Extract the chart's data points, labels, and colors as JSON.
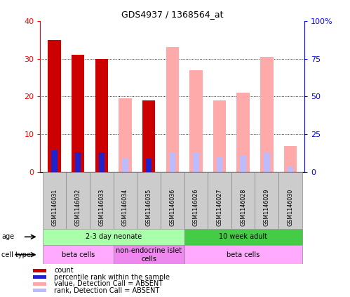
{
  "title": "GDS4937 / 1368564_at",
  "samples": [
    "GSM1146031",
    "GSM1146032",
    "GSM1146033",
    "GSM1146034",
    "GSM1146035",
    "GSM1146036",
    "GSM1146026",
    "GSM1146027",
    "GSM1146028",
    "GSM1146029",
    "GSM1146030"
  ],
  "count_values": [
    35,
    31,
    30,
    null,
    19,
    null,
    null,
    null,
    null,
    null,
    null
  ],
  "rank_values": [
    14.5,
    13,
    13,
    null,
    9,
    null,
    null,
    null,
    null,
    null,
    null
  ],
  "absent_value_values": [
    null,
    null,
    null,
    19.5,
    null,
    33,
    27,
    19,
    21,
    30.5,
    7
  ],
  "absent_rank_values": [
    null,
    null,
    null,
    9,
    null,
    13,
    13,
    10,
    11,
    13,
    4
  ],
  "ylim_left": [
    0,
    40
  ],
  "ylim_right": [
    0,
    100
  ],
  "yticks_left": [
    0,
    10,
    20,
    30,
    40
  ],
  "yticks_right": [
    0,
    25,
    50,
    75,
    100
  ],
  "count_color": "#cc0000",
  "rank_color": "#2222cc",
  "absent_value_color": "#ffaaaa",
  "absent_rank_color": "#bbbbff",
  "bar_width": 0.55,
  "rank_bar_width": 0.25,
  "age_groups": [
    {
      "label": "2-3 day neonate",
      "start": 0,
      "end": 6,
      "color": "#aaffaa"
    },
    {
      "label": "10 week adult",
      "start": 6,
      "end": 11,
      "color": "#44cc44"
    }
  ],
  "cell_type_groups": [
    {
      "label": "beta cells",
      "start": 0,
      "end": 3,
      "color": "#ffaaff"
    },
    {
      "label": "non-endocrine islet\ncells",
      "start": 3,
      "end": 6,
      "color": "#ee88ee"
    },
    {
      "label": "beta cells",
      "start": 6,
      "end": 11,
      "color": "#ffaaff"
    }
  ],
  "legend_items": [
    {
      "label": "count",
      "color": "#cc0000",
      "square": true
    },
    {
      "label": "percentile rank within the sample",
      "color": "#2222cc",
      "square": true
    },
    {
      "label": "value, Detection Call = ABSENT",
      "color": "#ffaaaa",
      "square": true
    },
    {
      "label": "rank, Detection Call = ABSENT",
      "color": "#bbbbff",
      "square": true
    }
  ]
}
